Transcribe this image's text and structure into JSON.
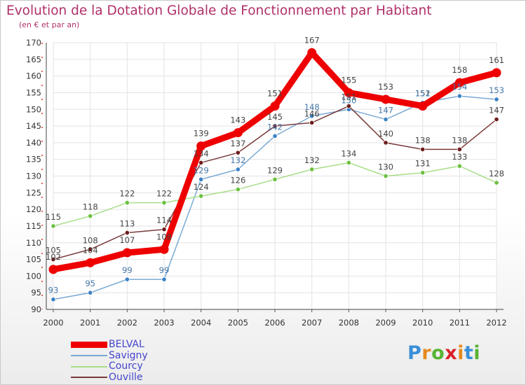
{
  "header": {
    "title": "Evolution de la Dotation Globale de Fonctionnement par Habitant",
    "subtitle": "(en € et par an)"
  },
  "logo": {
    "letters": [
      "P",
      "r",
      "o",
      "x",
      "i",
      "t",
      "i"
    ],
    "colors": [
      "#3a8fd8",
      "#e58a1f",
      "#58b335",
      "#d9222a",
      "#e58a1f",
      "#3a8fd8",
      "#58b335"
    ]
  },
  "chart_data": {
    "type": "line",
    "title": "Evolution de la Dotation Globale de Fonctionnement par Habitant",
    "subtitle": "(en € et par an)",
    "categories": [
      "2000",
      "2001",
      "2002",
      "2003",
      "2004",
      "2005",
      "2006",
      "2007",
      "2008",
      "2009",
      "2010",
      "2011",
      "2012"
    ],
    "ylim": [
      90,
      170
    ],
    "yticks": [
      90,
      95,
      100,
      105,
      110,
      115,
      120,
      125,
      130,
      135,
      140,
      145,
      150,
      155,
      160,
      165,
      170
    ],
    "grid": true,
    "legend_position": "bottom-left",
    "series": [
      {
        "name": "BELVAL",
        "color": "#ee0000",
        "marker": "#ee0000",
        "width": 9,
        "label_color": "#444444",
        "values": [
          102,
          104,
          107,
          108,
          139,
          143,
          151,
          167,
          155,
          153,
          151,
          158,
          161
        ]
      },
      {
        "name": "Savigny",
        "color": "#7aaad4",
        "marker": "#3b82c4",
        "width": 1.5,
        "label_color": "#4477aa",
        "values": [
          93,
          95,
          99,
          99,
          129,
          132,
          142,
          148,
          150,
          147,
          152,
          154,
          153
        ]
      },
      {
        "name": "Courcy",
        "color": "#a8de88",
        "marker": "#6cc040",
        "width": 1.5,
        "label_color": "#444444",
        "values": [
          115,
          118,
          122,
          122,
          124,
          126,
          129,
          132,
          134,
          130,
          131,
          133,
          128
        ]
      },
      {
        "name": "Ouville",
        "color": "#7a3a3a",
        "marker": "#6e1c1c",
        "width": 1.5,
        "label_color": "#444444",
        "values": [
          105,
          108,
          113,
          114,
          134,
          137,
          145,
          146,
          151,
          140,
          138,
          138,
          147
        ]
      }
    ]
  }
}
